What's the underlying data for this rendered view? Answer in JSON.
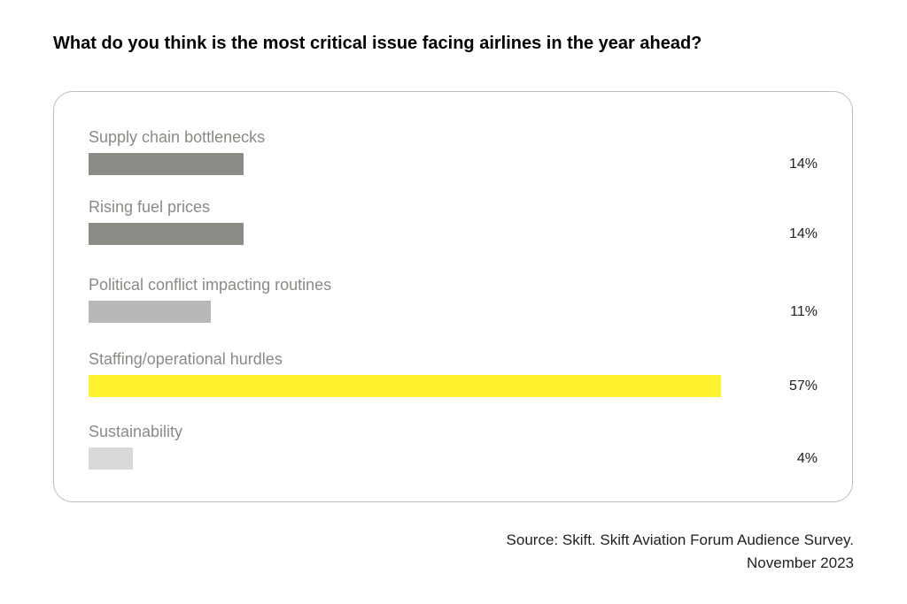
{
  "chart_data": {
    "type": "bar",
    "orientation": "horizontal",
    "title": "What do you think is the most critical issue facing airlines in the year ahead?",
    "categories": [
      "Supply chain bottlenecks",
      "Rising fuel prices",
      "Political conflict impacting routines",
      "Staffing/operational hurdles",
      "Sustainability"
    ],
    "values": [
      14,
      14,
      11,
      57,
      4
    ],
    "value_labels": [
      "14%",
      "14%",
      "11%",
      "57%",
      "4%"
    ],
    "unit": "%",
    "colors": [
      "#8c8c86",
      "#8c8c86",
      "#b8b8b8",
      "#fff22e",
      "#d9d9d9"
    ],
    "xlim": [
      0,
      100
    ],
    "grid": false,
    "legend": "none"
  },
  "source": {
    "line1": "Source: Skift. Skift Aviation Forum Audience Survey.",
    "line2": "November 2023"
  }
}
